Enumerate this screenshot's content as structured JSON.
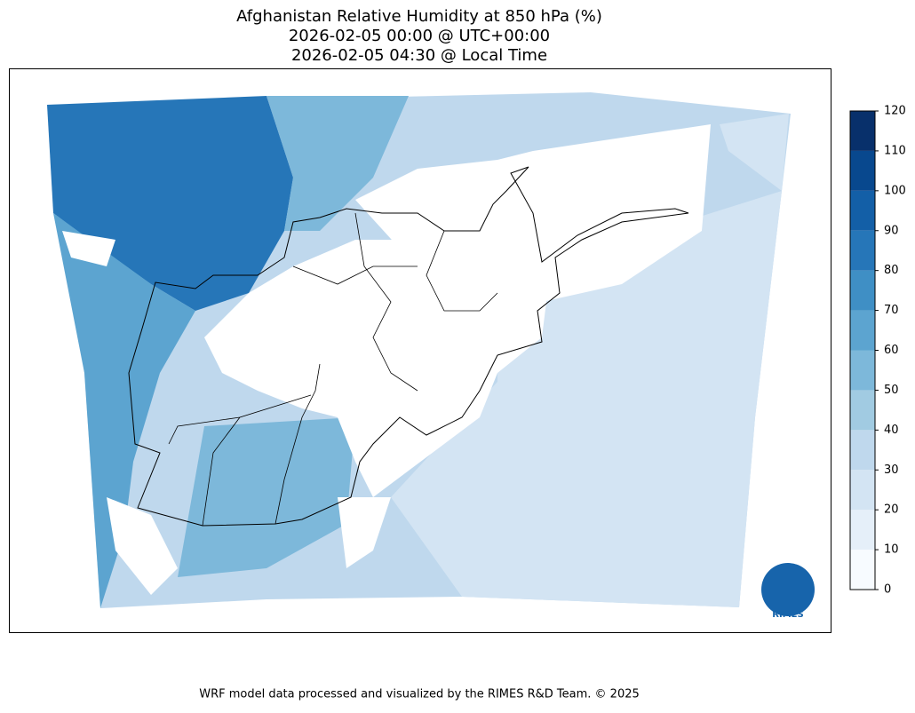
{
  "title": [
    "Afghanistan Relative Humidity at 850 hPa (%)",
    "2026-02-05 00:00 @ UTC+00:00",
    "2026-02-05 04:30 @ Local Time"
  ],
  "colorbar": {
    "range": [
      0,
      120
    ],
    "ticks": [
      0,
      10,
      20,
      30,
      40,
      50,
      60,
      70,
      80,
      90,
      100,
      110,
      120
    ],
    "colors": [
      "#f7fbff",
      "#e5eff9",
      "#d3e4f3",
      "#bfd8ed",
      "#a1cbe2",
      "#7db8da",
      "#5ca4d0",
      "#3f8fc5",
      "#2676b8",
      "#135fa7",
      "#08488e",
      "#08306b"
    ]
  },
  "logo": "RIMES",
  "footer": "WRF model data processed and visualized by the RIMES R&D Team. © 2025"
}
